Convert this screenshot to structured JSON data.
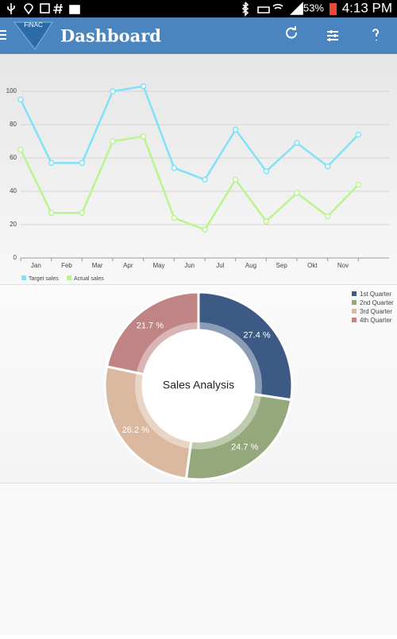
{
  "status_bar": {
    "battery": "53%",
    "time": "4:13 PM"
  },
  "app_bar": {
    "logo": "FiNAC",
    "title": "Dashboard"
  },
  "chart_data": [
    {
      "type": "line",
      "categories": [
        "Jan",
        "Feb",
        "Mar",
        "Apr",
        "May",
        "Jun",
        "Jul",
        "Aug",
        "Sep",
        "Okt",
        "Nov",
        null
      ],
      "series": [
        {
          "name": "Target sales",
          "color": "#80e2f6",
          "values": [
            95,
            57,
            57,
            100,
            103,
            54,
            47,
            77,
            52,
            69,
            55,
            74
          ]
        },
        {
          "name": "Actual sales",
          "color": "#b9f58c",
          "values": [
            65,
            27,
            27,
            70,
            73,
            24,
            17,
            47,
            22,
            39,
            25,
            44
          ]
        }
      ],
      "ylim": [
        0,
        110
      ],
      "yticks": [
        0,
        20,
        40,
        60,
        80,
        100
      ],
      "grid": true,
      "legend": "bottom-left"
    },
    {
      "type": "pie",
      "title": "Sales Analysis",
      "categories": [
        "1st Quarter",
        "2nd Quarter",
        "3rd Quarter",
        "4th Quarter"
      ],
      "values": [
        27.4,
        24.7,
        26.2,
        21.7
      ],
      "value_labels": [
        "27.4 %",
        "24.7 %",
        "26.2 %",
        "21.7 %"
      ],
      "colors": [
        "#3d5a85",
        "#95a87b",
        "#dbb9a0",
        "#c08484"
      ],
      "legend": "top-right"
    }
  ]
}
